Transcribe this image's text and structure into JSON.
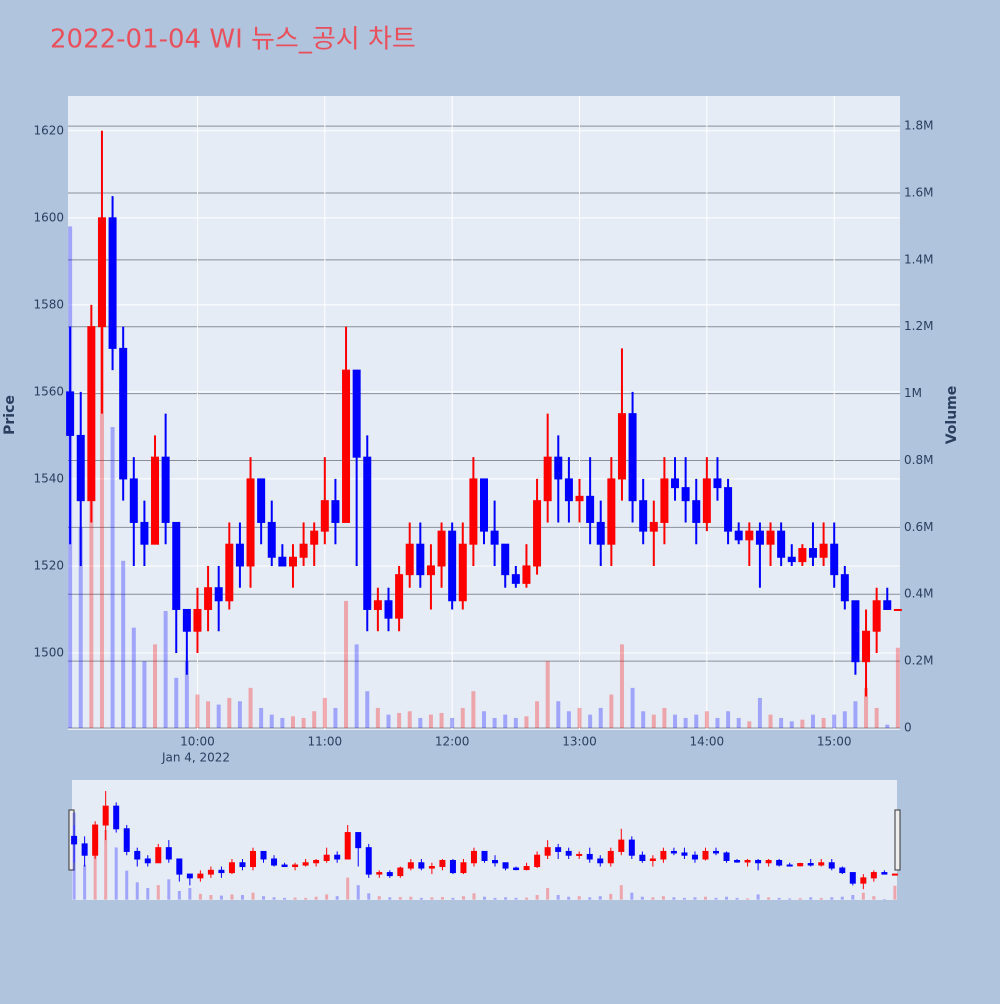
{
  "chart_data": {
    "type": "candlestick",
    "title": "2022-01-04 WI 뉴스_공시 차트",
    "y_title": "Price",
    "y2_title": "Volume",
    "increasing_color": "#ff0000",
    "decreasing_color": "#0000ff",
    "xlim": [
      "2022-01-04 08:59",
      "2022-01-04 15:31"
    ],
    "xticks": [
      {
        "value": "2022-01-04 10:00",
        "label": "10:00"
      },
      {
        "value": "2022-01-04 11:00",
        "label": "11:00"
      },
      {
        "value": "2022-01-04 12:00",
        "label": "12:00"
      },
      {
        "value": "2022-01-04 13:00",
        "label": "13:00"
      },
      {
        "value": "2022-01-04 14:00",
        "label": "14:00"
      },
      {
        "value": "2022-01-04 15:00",
        "label": "15:00"
      }
    ],
    "x_date_label": "Jan 4, 2022",
    "ylim": [
      1482.3,
      1628
    ],
    "yticks": [
      1500,
      1520,
      1540,
      1560,
      1580,
      1600,
      1620
    ],
    "y2lim": [
      -6000,
      1890000
    ],
    "y2ticks": [
      {
        "value": 0,
        "label": "0"
      },
      {
        "value": 200000,
        "label": "0.2M"
      },
      {
        "value": 400000,
        "label": "0.4M"
      },
      {
        "value": 600000,
        "label": "0.6M"
      },
      {
        "value": 800000,
        "label": "0.8M"
      },
      {
        "value": 1000000,
        "label": "1M"
      },
      {
        "value": 1200000,
        "label": "1.2M"
      },
      {
        "value": 1400000,
        "label": "1.4M"
      },
      {
        "value": 1600000,
        "label": "1.6M"
      },
      {
        "value": 1800000,
        "label": "1.8M"
      }
    ],
    "x": [
      "2022-01-04 09:00",
      "2022-01-04 09:05",
      "2022-01-04 09:10",
      "2022-01-04 09:15",
      "2022-01-04 09:20",
      "2022-01-04 09:25",
      "2022-01-04 09:30",
      "2022-01-04 09:35",
      "2022-01-04 09:40",
      "2022-01-04 09:45",
      "2022-01-04 09:50",
      "2022-01-04 09:55",
      "2022-01-04 10:00",
      "2022-01-04 10:05",
      "2022-01-04 10:10",
      "2022-01-04 10:15",
      "2022-01-04 10:20",
      "2022-01-04 10:25",
      "2022-01-04 10:30",
      "2022-01-04 10:35",
      "2022-01-04 10:40",
      "2022-01-04 10:45",
      "2022-01-04 10:50",
      "2022-01-04 10:55",
      "2022-01-04 11:00",
      "2022-01-04 11:05",
      "2022-01-04 11:10",
      "2022-01-04 11:15",
      "2022-01-04 11:20",
      "2022-01-04 11:25",
      "2022-01-04 11:30",
      "2022-01-04 11:35",
      "2022-01-04 11:40",
      "2022-01-04 11:45",
      "2022-01-04 11:50",
      "2022-01-04 11:55",
      "2022-01-04 12:00",
      "2022-01-04 12:05",
      "2022-01-04 12:10",
      "2022-01-04 12:15",
      "2022-01-04 12:20",
      "2022-01-04 12:25",
      "2022-01-04 12:30",
      "2022-01-04 12:35",
      "2022-01-04 12:40",
      "2022-01-04 12:45",
      "2022-01-04 12:50",
      "2022-01-04 12:55",
      "2022-01-04 13:00",
      "2022-01-04 13:05",
      "2022-01-04 13:10",
      "2022-01-04 13:15",
      "2022-01-04 13:20",
      "2022-01-04 13:25",
      "2022-01-04 13:30",
      "2022-01-04 13:35",
      "2022-01-04 13:40",
      "2022-01-04 13:45",
      "2022-01-04 13:50",
      "2022-01-04 13:55",
      "2022-01-04 14:00",
      "2022-01-04 14:05",
      "2022-01-04 14:10",
      "2022-01-04 14:15",
      "2022-01-04 14:20",
      "2022-01-04 14:25",
      "2022-01-04 14:30",
      "2022-01-04 14:35",
      "2022-01-04 14:40",
      "2022-01-04 14:45",
      "2022-01-04 14:50",
      "2022-01-04 14:55",
      "2022-01-04 15:00",
      "2022-01-04 15:05",
      "2022-01-04 15:10",
      "2022-01-04 15:15",
      "2022-01-04 15:20",
      "2022-01-04 15:25",
      "2022-01-04 15:30"
    ],
    "open": [
      1560,
      1550,
      1535,
      1575,
      1600,
      1570,
      1540,
      1530,
      1525,
      1545,
      1530,
      1510,
      1505,
      1510,
      1515,
      1512,
      1525,
      1520,
      1540,
      1530,
      1522,
      1520,
      1522,
      1525,
      1528,
      1535,
      1530,
      1565,
      1545,
      1510,
      1512,
      1508,
      1518,
      1525,
      1518,
      1520,
      1528,
      1512,
      1525,
      1540,
      1528,
      1525,
      1518,
      1516,
      1520,
      1535,
      1545,
      1540,
      1535,
      1536,
      1530,
      1525,
      1540,
      1555,
      1535,
      1528,
      1530,
      1540,
      1538,
      1535,
      1530,
      1540,
      1538,
      1528,
      1526,
      1528,
      1525,
      1528,
      1522,
      1521,
      1524,
      1522,
      1525,
      1518,
      1512,
      1498,
      1505,
      1512,
      1510
    ],
    "high": [
      1575,
      1560,
      1580,
      1620,
      1605,
      1575,
      1545,
      1535,
      1550,
      1555,
      1530,
      1510,
      1515,
      1520,
      1520,
      1530,
      1530,
      1545,
      1540,
      1535,
      1525,
      1525,
      1530,
      1530,
      1545,
      1540,
      1575,
      1565,
      1550,
      1515,
      1515,
      1520,
      1530,
      1530,
      1525,
      1530,
      1530,
      1530,
      1545,
      1540,
      1535,
      1525,
      1520,
      1525,
      1540,
      1555,
      1550,
      1545,
      1540,
      1545,
      1535,
      1545,
      1570,
      1560,
      1540,
      1535,
      1545,
      1545,
      1545,
      1540,
      1545,
      1545,
      1540,
      1530,
      1530,
      1530,
      1530,
      1530,
      1525,
      1525,
      1530,
      1530,
      1530,
      1520,
      1512,
      1510,
      1515,
      1515,
      1510
    ],
    "low": [
      1525,
      1520,
      1530,
      1555,
      1565,
      1535,
      1520,
      1520,
      1525,
      1525,
      1500,
      1495,
      1500,
      1505,
      1505,
      1510,
      1515,
      1515,
      1525,
      1520,
      1520,
      1515,
      1520,
      1520,
      1525,
      1525,
      1530,
      1520,
      1505,
      1505,
      1505,
      1505,
      1515,
      1515,
      1510,
      1515,
      1510,
      1510,
      1520,
      1525,
      1520,
      1515,
      1515,
      1515,
      1518,
      1530,
      1530,
      1530,
      1530,
      1525,
      1520,
      1520,
      1535,
      1530,
      1525,
      1520,
      1525,
      1535,
      1530,
      1525,
      1528,
      1535,
      1525,
      1525,
      1520,
      1515,
      1520,
      1520,
      1520,
      1520,
      1520,
      1520,
      1515,
      1510,
      1495,
      1490,
      1500,
      1510,
      1510
    ],
    "close": [
      1550,
      1535,
      1575,
      1600,
      1570,
      1540,
      1530,
      1525,
      1545,
      1530,
      1510,
      1505,
      1510,
      1515,
      1512,
      1525,
      1520,
      1540,
      1530,
      1522,
      1520,
      1522,
      1525,
      1528,
      1535,
      1530,
      1565,
      1545,
      1510,
      1512,
      1508,
      1518,
      1525,
      1518,
      1520,
      1528,
      1512,
      1525,
      1540,
      1528,
      1525,
      1518,
      1516,
      1520,
      1535,
      1545,
      1540,
      1535,
      1536,
      1530,
      1525,
      1540,
      1555,
      1535,
      1528,
      1530,
      1540,
      1538,
      1535,
      1530,
      1540,
      1538,
      1528,
      1526,
      1528,
      1525,
      1528,
      1522,
      1521,
      1524,
      1522,
      1525,
      1518,
      1512,
      1498,
      1505,
      1512,
      1510,
      1510
    ],
    "volume": [
      1500000,
      600000,
      800000,
      1200000,
      900000,
      500000,
      300000,
      200000,
      250000,
      350000,
      150000,
      200000,
      100000,
      80000,
      70000,
      90000,
      80000,
      120000,
      60000,
      40000,
      30000,
      35000,
      30000,
      50000,
      90000,
      60000,
      380000,
      250000,
      110000,
      60000,
      40000,
      45000,
      50000,
      30000,
      40000,
      45000,
      30000,
      60000,
      110000,
      50000,
      30000,
      40000,
      30000,
      35000,
      80000,
      200000,
      80000,
      50000,
      60000,
      40000,
      60000,
      100000,
      250000,
      120000,
      50000,
      40000,
      60000,
      40000,
      30000,
      40000,
      50000,
      30000,
      50000,
      30000,
      20000,
      90000,
      40000,
      30000,
      20000,
      25000,
      40000,
      30000,
      40000,
      50000,
      80000,
      120000,
      60000,
      10000,
      240000
    ]
  }
}
